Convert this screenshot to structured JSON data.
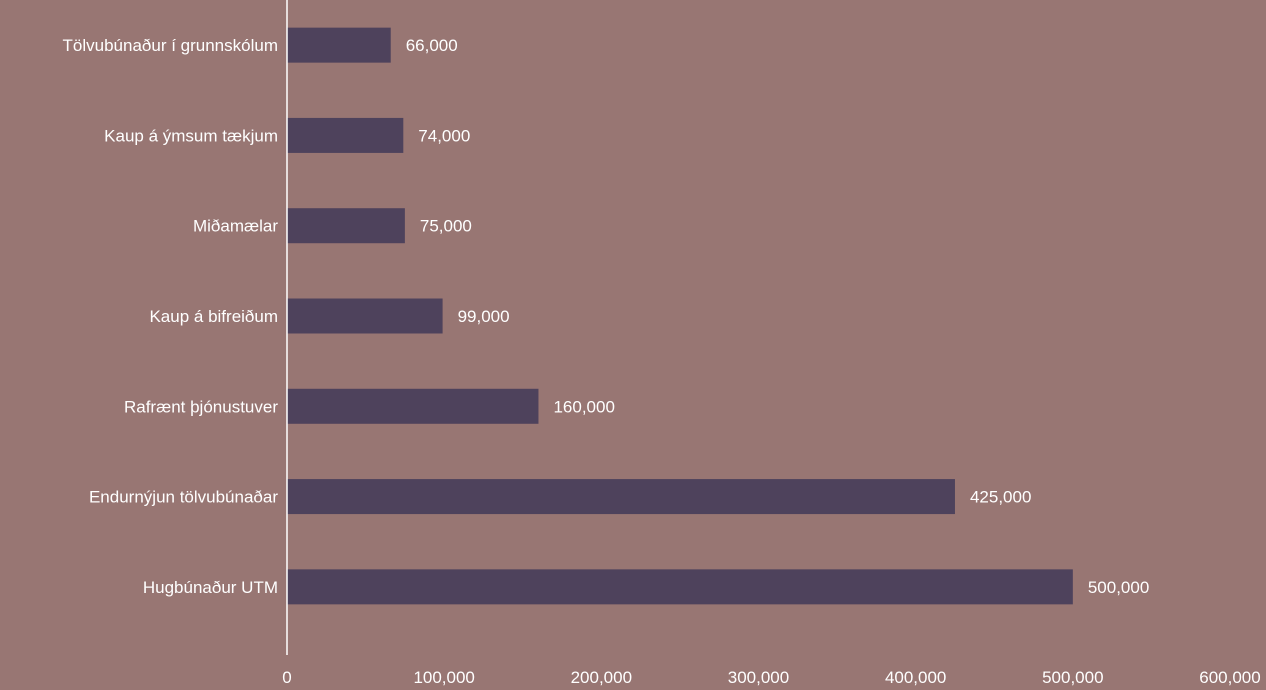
{
  "chart_data": {
    "type": "bar",
    "orientation": "horizontal",
    "categories": [
      "Tölvubúnaður í grunnskólum",
      "Kaup á ýmsum tækjum",
      "Miðamælar",
      "Kaup á bifreiðum",
      "Rafrænt þjónustuver",
      "Endurnýjun tölvubúnaðar",
      "Hugbúnaður UTM"
    ],
    "values": [
      66000,
      74000,
      75000,
      99000,
      160000,
      425000,
      500000
    ],
    "value_labels": [
      "66,000",
      "74,000",
      "75,000",
      "99,000",
      "160,000",
      "425,000",
      "500,000"
    ],
    "xlim": [
      0,
      600000
    ],
    "x_ticks": [
      0,
      100000,
      200000,
      300000,
      400000,
      500000,
      600000
    ],
    "x_tick_labels": [
      "0",
      "100,000",
      "200,000",
      "300,000",
      "400,000",
      "500,000",
      "600,000"
    ],
    "grid": false,
    "legend": "none",
    "colors": {
      "background": "#987673",
      "bar": "#4e425c",
      "text": "#ffffff"
    }
  }
}
